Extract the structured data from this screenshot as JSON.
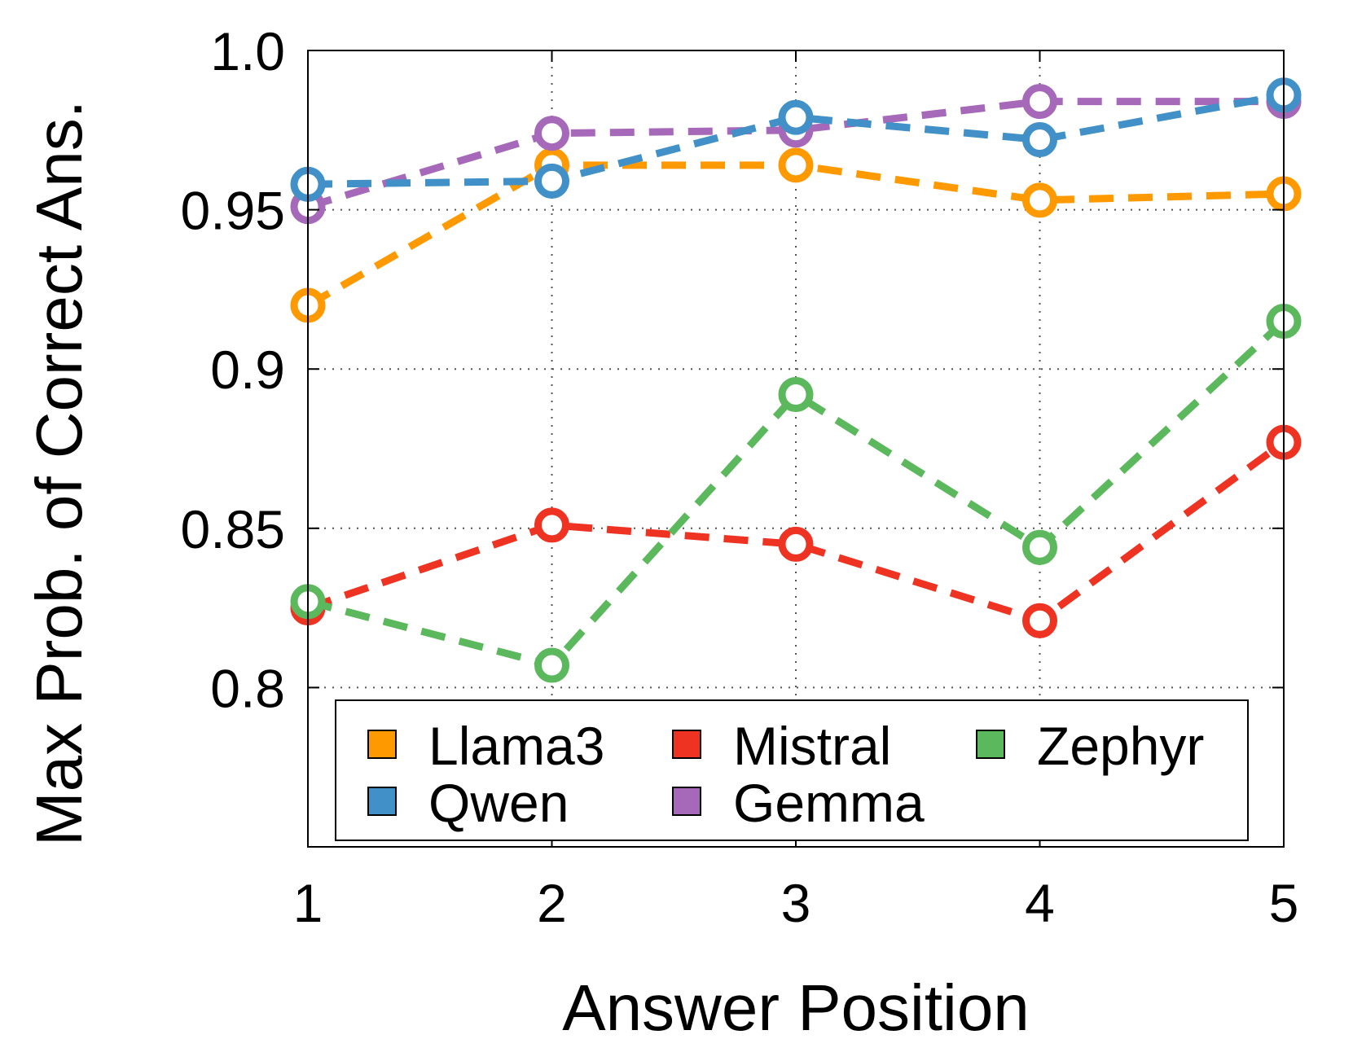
{
  "chart_data": {
    "type": "line",
    "title": "",
    "xlabel": "Answer Position",
    "ylabel": "Max Prob. of Correct Ans.",
    "x": [
      1,
      2,
      3,
      4,
      5
    ],
    "xticks": [
      "1",
      "2",
      "3",
      "4",
      "5"
    ],
    "xlim": [
      1,
      5
    ],
    "ylim": [
      0.75,
      1.0
    ],
    "yticks": [
      {
        "value": 0.8,
        "label": "0.8"
      },
      {
        "value": 0.85,
        "label": "0.85"
      },
      {
        "value": 0.9,
        "label": "0.9"
      },
      {
        "value": 0.95,
        "label": "0.95"
      },
      {
        "value": 1.0,
        "label": "1.0"
      }
    ],
    "grid": true,
    "line_style": "dashed",
    "marker": "open-circle",
    "legend_position": "bottom",
    "series": [
      {
        "name": "Llama3",
        "color": "#FF9900",
        "values": [
          0.92,
          0.964,
          0.964,
          0.953,
          0.955
        ]
      },
      {
        "name": "Mistral",
        "color": "#EE3322",
        "values": [
          0.825,
          0.851,
          0.845,
          0.821,
          0.877
        ]
      },
      {
        "name": "Zephyr",
        "color": "#5CB85C",
        "values": [
          0.827,
          0.807,
          0.892,
          0.844,
          0.915
        ]
      },
      {
        "name": "Gemma",
        "color": "#A668B8",
        "values": [
          0.951,
          0.974,
          0.975,
          0.984,
          0.984
        ]
      },
      {
        "name": "Qwen",
        "color": "#4191C8",
        "values": [
          0.958,
          0.959,
          0.979,
          0.972,
          0.986
        ]
      }
    ],
    "legend_order": [
      "Llama3",
      "Mistral",
      "Zephyr",
      "Qwen",
      "Gemma"
    ]
  }
}
